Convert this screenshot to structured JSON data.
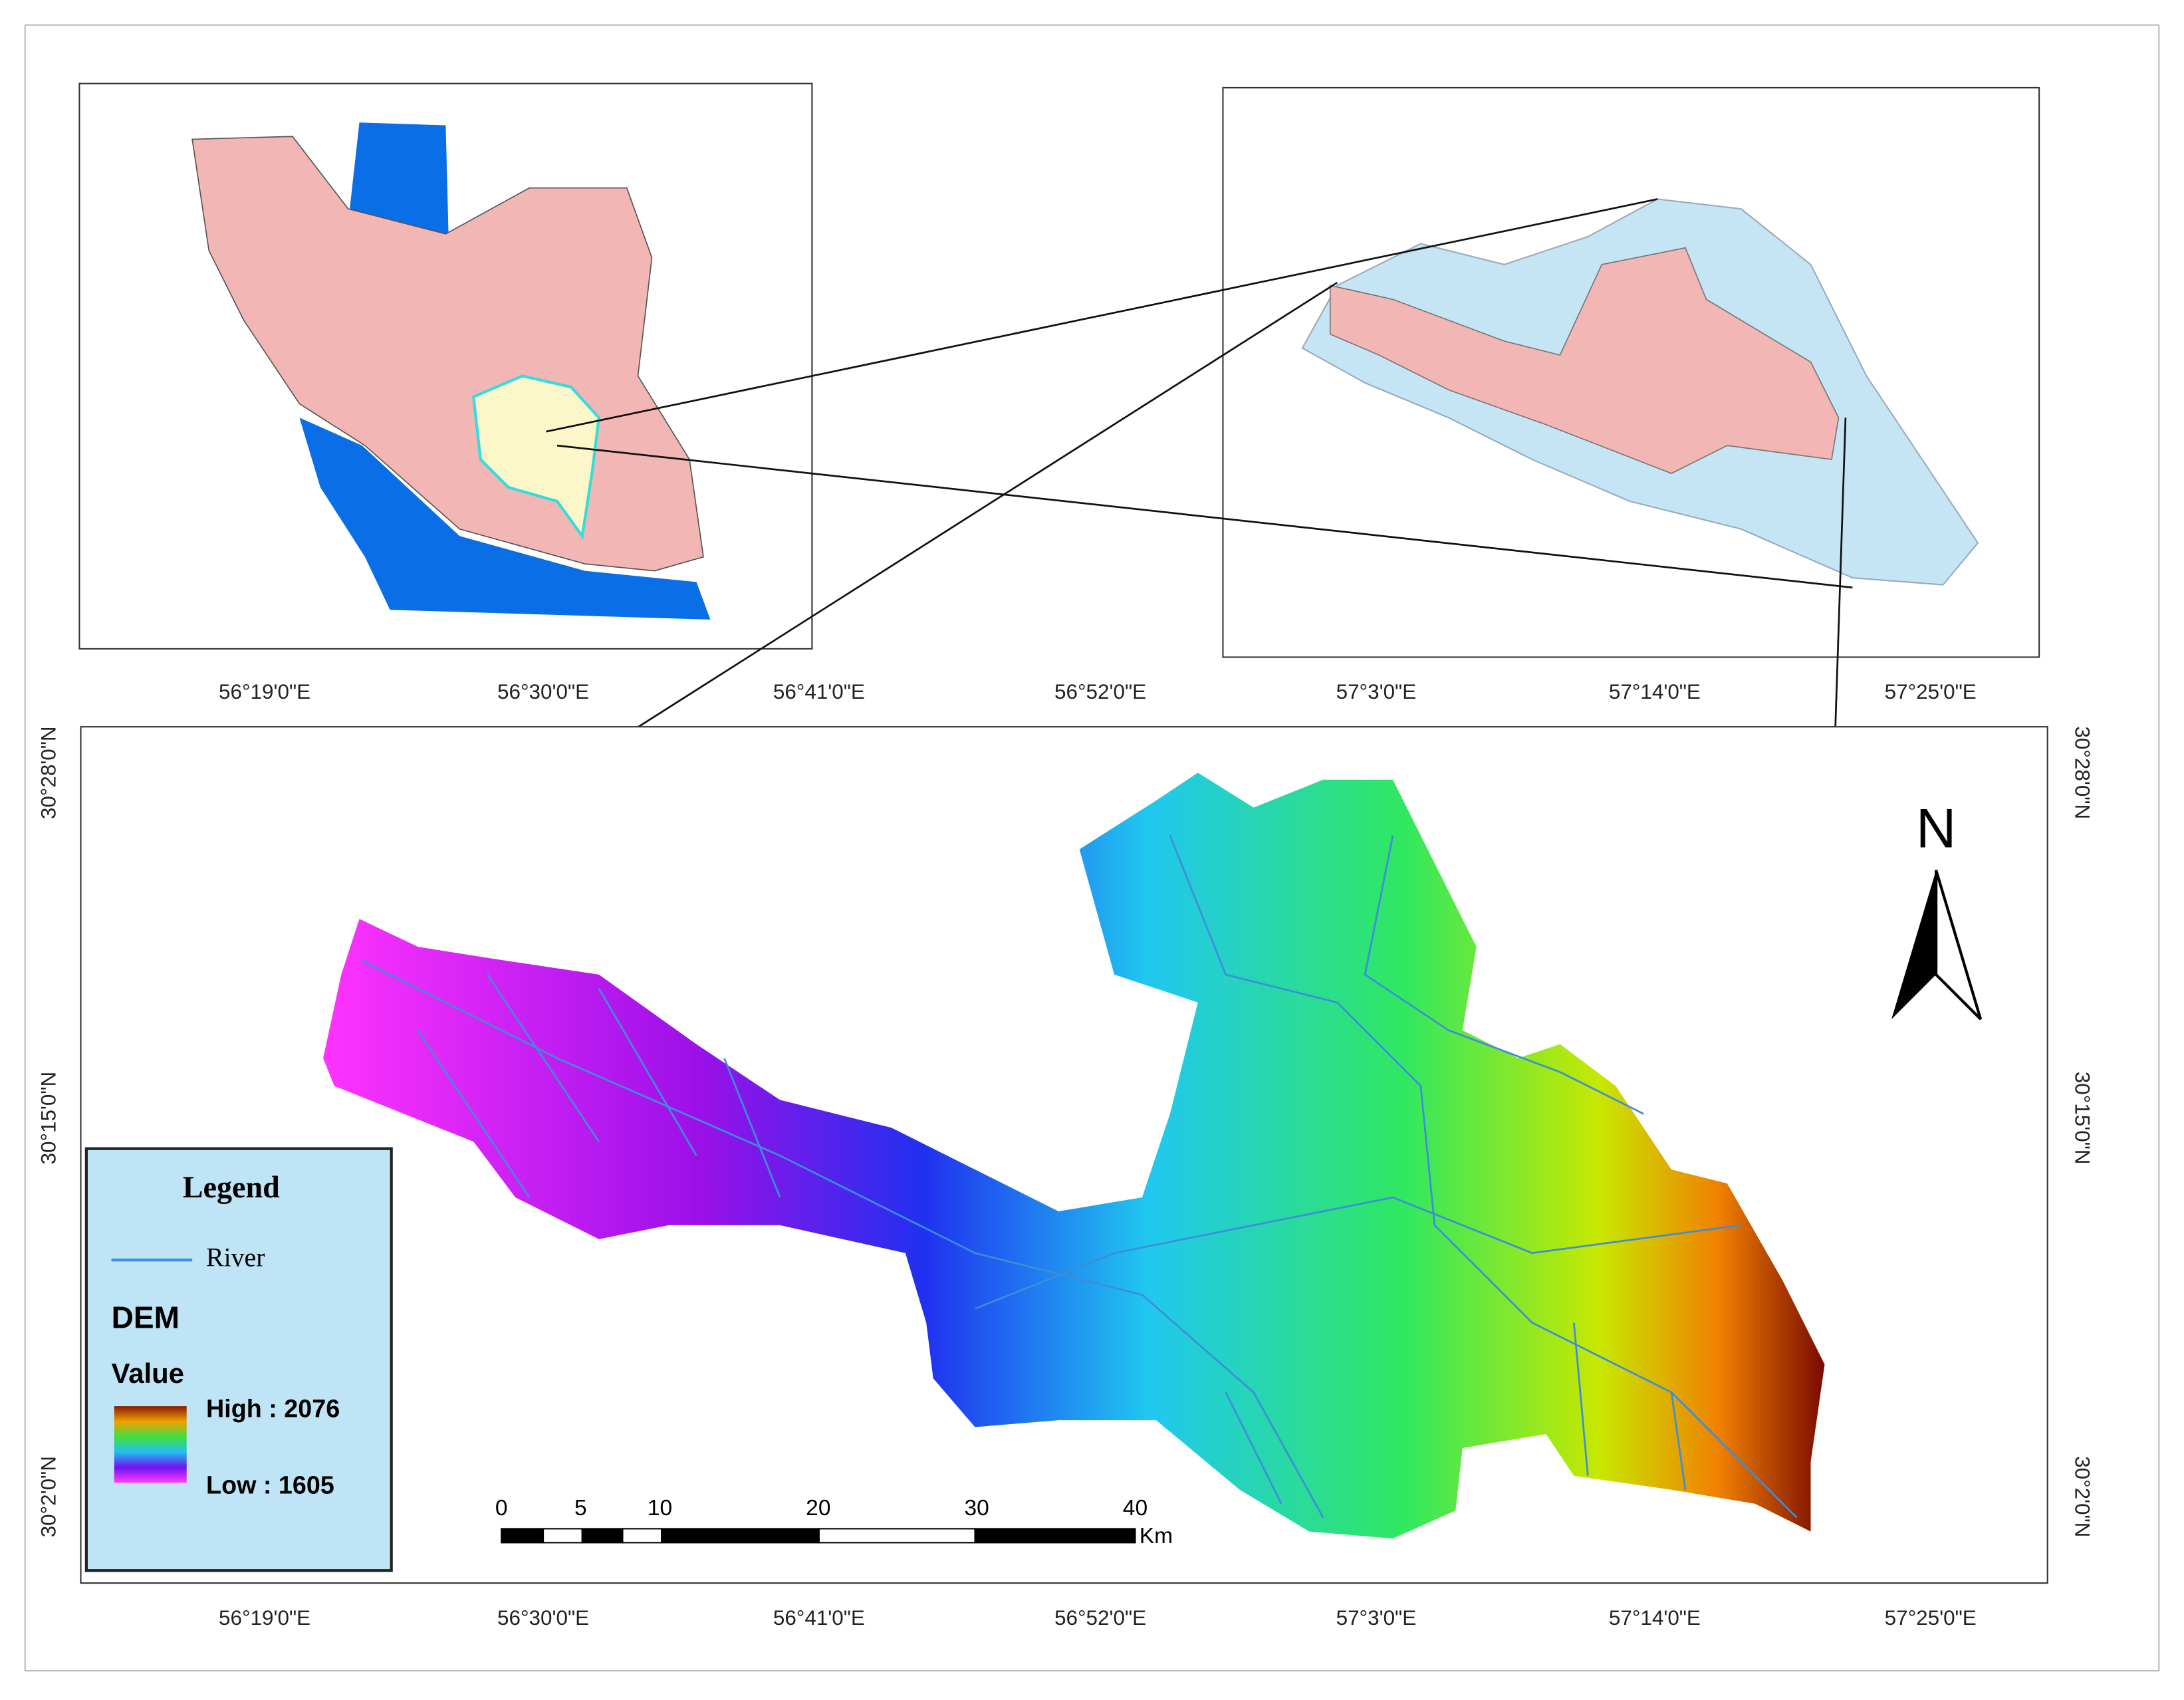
{
  "top_axis_labels": [
    "56°19'0\"E",
    "56°30'0\"E",
    "56°41'0\"E",
    "56°52'0\"E",
    "57°3'0\"E",
    "57°14'0\"E",
    "57°25'0\"E"
  ],
  "bottom_axis_labels": [
    "56°19'0\"E",
    "56°30'0\"E",
    "56°41'0\"E",
    "56°52'0\"E",
    "57°3'0\"E",
    "57°14'0\"E",
    "57°25'0\"E"
  ],
  "left_axis_labels": [
    "30°28'0\"N",
    "30°15'0\"N",
    "30°2'0\"N"
  ],
  "right_axis_labels": [
    "30°28'0\"N",
    "30°15'0\"N",
    "30°2'0\"N"
  ],
  "north_arrow": "N",
  "legend": {
    "title": "Legend",
    "river": "River",
    "dem_title": "DEM",
    "value_title": "Value",
    "high": "High : 2076",
    "low": "Low : 1605"
  },
  "scale_bar": {
    "labels": [
      0,
      5,
      10,
      20,
      30,
      40
    ],
    "unit": "Km"
  }
}
